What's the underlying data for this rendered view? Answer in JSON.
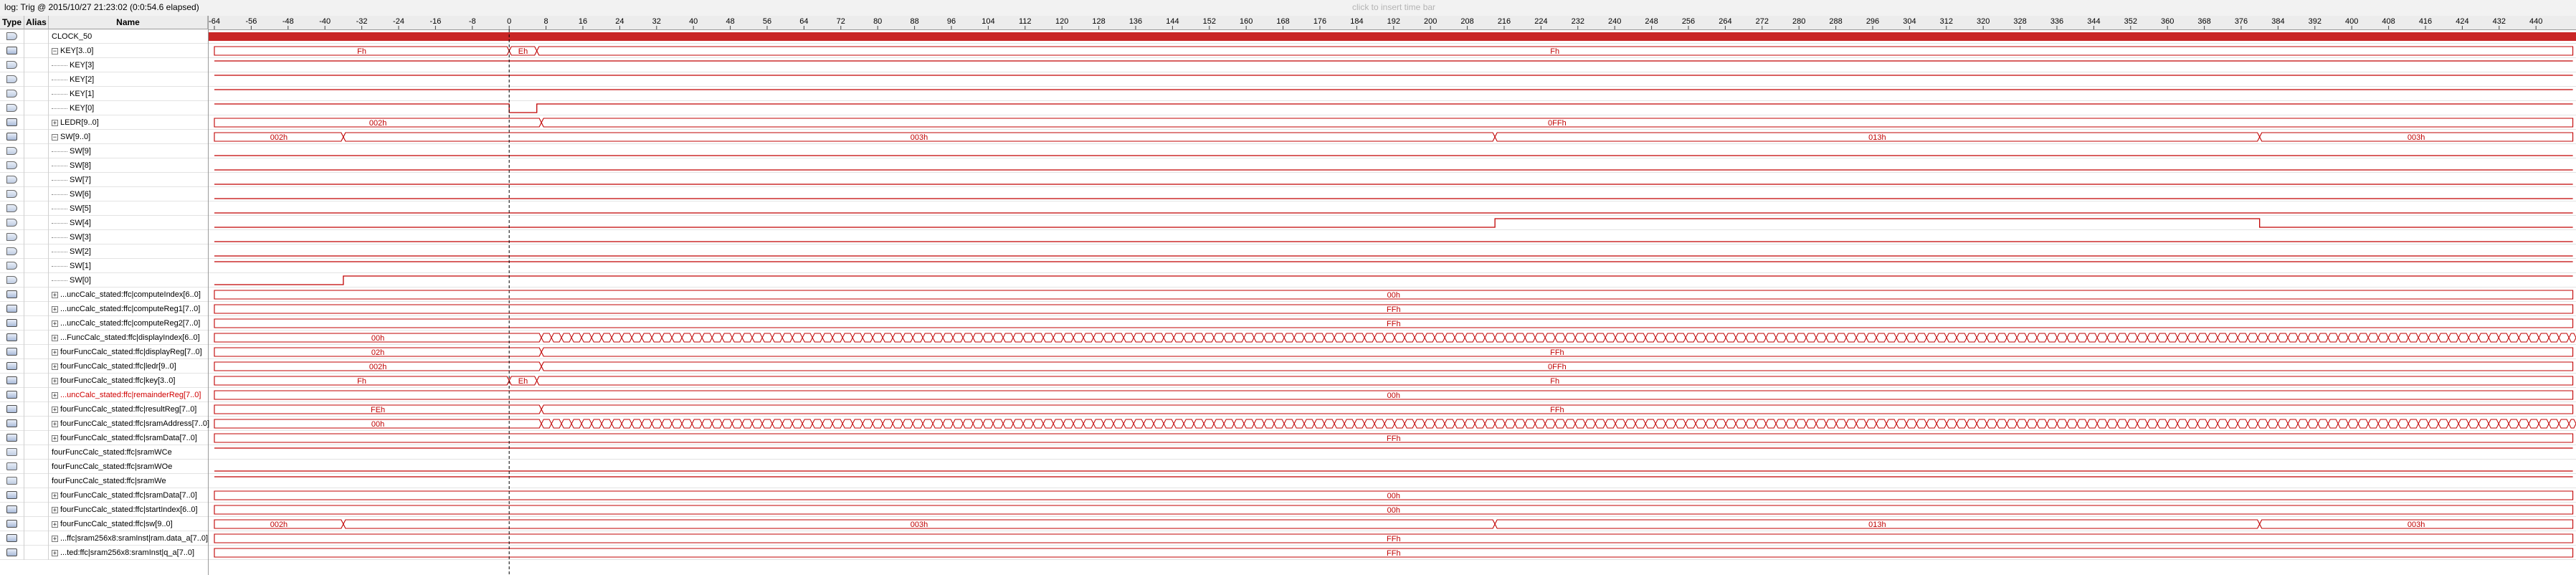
{
  "topbar": {
    "trigger": "log: Trig @ 2015/10/27 21:23:02 (0:0:54.6 elapsed)",
    "insert_hint": "click to insert time bar"
  },
  "columns": {
    "type": "Type",
    "alias": "Alias",
    "name": "Name"
  },
  "ruler": {
    "ticks": [
      "-64",
      "-56",
      "-48",
      "-40",
      "-32",
      "-24",
      "-16",
      "-8",
      "0",
      "8",
      "16",
      "24",
      "32",
      "40",
      "48",
      "56",
      "64",
      "72",
      "80",
      "88",
      "96",
      "104",
      "112",
      "120",
      "128",
      "136",
      "144",
      "152",
      "160",
      "168",
      "176",
      "184",
      "192",
      "200",
      "208",
      "216",
      "224",
      "232",
      "240",
      "248",
      "256",
      "264",
      "272",
      "280",
      "288",
      "296",
      "304",
      "312",
      "320",
      "328",
      "336",
      "344",
      "352",
      "360",
      "368",
      "376",
      "384",
      "392",
      "400",
      "408",
      "416",
      "424",
      "432",
      "440"
    ]
  },
  "colors": {
    "wave": "#c00000",
    "cursor": "#000000",
    "grid": "#e3e3e3"
  },
  "signals": [
    {
      "name": "CLOCK_50",
      "kind": "clock",
      "indent": 0,
      "icon": "port-icon"
    },
    {
      "name": "KEY[3..0]",
      "kind": "bus",
      "indent": 0,
      "expander": "−",
      "icon": "bus-icon",
      "segments": [
        {
          "from": -64,
          "to": 0,
          "label": "Fh"
        },
        {
          "from": 0,
          "to": 6,
          "label": "Eh"
        },
        {
          "from": 6,
          "to": 448,
          "label": "Fh"
        }
      ]
    },
    {
      "name": "KEY[3]",
      "kind": "bit",
      "indent": 1,
      "icon": "port-icon",
      "levels": [
        {
          "from": -64,
          "to": 448,
          "v": 1
        }
      ]
    },
    {
      "name": "KEY[2]",
      "kind": "bit",
      "indent": 1,
      "icon": "port-icon",
      "levels": [
        {
          "from": -64,
          "to": 448,
          "v": 1
        }
      ]
    },
    {
      "name": "KEY[1]",
      "kind": "bit",
      "indent": 1,
      "icon": "port-icon",
      "levels": [
        {
          "from": -64,
          "to": 448,
          "v": 1
        }
      ]
    },
    {
      "name": "KEY[0]",
      "kind": "bit",
      "indent": 1,
      "icon": "port-icon",
      "levels": [
        {
          "from": -64,
          "to": 0,
          "v": 1
        },
        {
          "from": 0,
          "to": 6,
          "v": 0
        },
        {
          "from": 6,
          "to": 448,
          "v": 1
        }
      ]
    },
    {
      "name": "LEDR[9..0]",
      "kind": "bus",
      "indent": 0,
      "expander": "+",
      "icon": "bus-icon",
      "segments": [
        {
          "from": -64,
          "to": 7,
          "label": "002h"
        },
        {
          "from": 7,
          "to": 448,
          "label": "0FFh"
        }
      ]
    },
    {
      "name": "SW[9..0]",
      "kind": "bus",
      "indent": 0,
      "expander": "−",
      "icon": "bus-icon",
      "segments": [
        {
          "from": -64,
          "to": -36,
          "label": "002h"
        },
        {
          "from": -36,
          "to": 214,
          "label": "003h"
        },
        {
          "from": 214,
          "to": 380,
          "label": "013h"
        },
        {
          "from": 380,
          "to": 448,
          "label": "003h"
        }
      ]
    },
    {
      "name": "SW[9]",
      "kind": "bit",
      "indent": 1,
      "icon": "port-icon",
      "levels": [
        {
          "from": -64,
          "to": 448,
          "v": 0
        }
      ]
    },
    {
      "name": "SW[8]",
      "kind": "bit",
      "indent": 1,
      "icon": "port-icon",
      "levels": [
        {
          "from": -64,
          "to": 448,
          "v": 0
        }
      ]
    },
    {
      "name": "SW[7]",
      "kind": "bit",
      "indent": 1,
      "icon": "port-icon",
      "levels": [
        {
          "from": -64,
          "to": 448,
          "v": 0
        }
      ]
    },
    {
      "name": "SW[6]",
      "kind": "bit",
      "indent": 1,
      "icon": "port-icon",
      "levels": [
        {
          "from": -64,
          "to": 448,
          "v": 0
        }
      ]
    },
    {
      "name": "SW[5]",
      "kind": "bit",
      "indent": 1,
      "icon": "port-icon",
      "levels": [
        {
          "from": -64,
          "to": 448,
          "v": 0
        }
      ]
    },
    {
      "name": "SW[4]",
      "kind": "bit",
      "indent": 1,
      "icon": "port-icon",
      "levels": [
        {
          "from": -64,
          "to": 214,
          "v": 0
        },
        {
          "from": 214,
          "to": 380,
          "v": 1
        },
        {
          "from": 380,
          "to": 448,
          "v": 0
        }
      ]
    },
    {
      "name": "SW[3]",
      "kind": "bit",
      "indent": 1,
      "icon": "port-icon",
      "levels": [
        {
          "from": -64,
          "to": 448,
          "v": 0
        }
      ]
    },
    {
      "name": "SW[2]",
      "kind": "bit",
      "indent": 1,
      "icon": "port-icon",
      "levels": [
        {
          "from": -64,
          "to": 448,
          "v": 0
        }
      ]
    },
    {
      "name": "SW[1]",
      "kind": "bit",
      "indent": 1,
      "icon": "port-icon",
      "levels": [
        {
          "from": -64,
          "to": -36,
          "v": 1
        },
        {
          "from": -36,
          "to": 448,
          "v": 1
        }
      ]
    },
    {
      "name": "SW[0]",
      "kind": "bit",
      "indent": 1,
      "icon": "port-icon",
      "levels": [
        {
          "from": -64,
          "to": -36,
          "v": 0
        },
        {
          "from": -36,
          "to": 448,
          "v": 1
        }
      ]
    },
    {
      "name": "...uncCalc_stated:ffc|computeIndex[6..0]",
      "kind": "bus",
      "indent": 0,
      "expander": "+",
      "icon": "reg-icon",
      "segments": [
        {
          "from": -64,
          "to": 448,
          "label": "00h"
        }
      ]
    },
    {
      "name": "...uncCalc_stated:ffc|computeReg1[7..0]",
      "kind": "bus",
      "indent": 0,
      "expander": "+",
      "icon": "reg-icon",
      "segments": [
        {
          "from": -64,
          "to": 448,
          "label": "FFh"
        }
      ]
    },
    {
      "name": "...uncCalc_stated:ffc|computeReg2[7..0]",
      "kind": "bus",
      "indent": 0,
      "expander": "+",
      "icon": "reg-icon",
      "segments": [
        {
          "from": -64,
          "to": 448,
          "label": "FFh"
        }
      ]
    },
    {
      "name": "...FuncCalc_stated:ffc|displayIndex[6..0]",
      "kind": "bus",
      "indent": 0,
      "expander": "+",
      "icon": "reg-icon",
      "segments": [
        {
          "from": -64,
          "to": 7,
          "label": "00h"
        }
      ],
      "toggle_from": 7
    },
    {
      "name": "fourFuncCalc_stated:ffc|displayReg[7..0]",
      "kind": "bus",
      "indent": 0,
      "expander": "+",
      "icon": "reg-icon",
      "segments": [
        {
          "from": -64,
          "to": 7,
          "label": "02h"
        },
        {
          "from": 7,
          "to": 448,
          "label": "FFh"
        }
      ]
    },
    {
      "name": "fourFuncCalc_stated:ffc|ledr[9..0]",
      "kind": "bus",
      "indent": 0,
      "expander": "+",
      "icon": "reg-icon",
      "segments": [
        {
          "from": -64,
          "to": 7,
          "label": "002h"
        },
        {
          "from": 7,
          "to": 448,
          "label": "0FFh"
        }
      ]
    },
    {
      "name": "fourFuncCalc_stated:ffc|key[3..0]",
      "kind": "bus",
      "indent": 0,
      "expander": "+",
      "icon": "reg-icon",
      "segments": [
        {
          "from": -64,
          "to": 0,
          "label": "Fh"
        },
        {
          "from": 0,
          "to": 6,
          "label": "Eh"
        },
        {
          "from": 6,
          "to": 448,
          "label": "Fh"
        }
      ]
    },
    {
      "name": "...uncCalc_stated:ffc|remainderReg[7..0]",
      "kind": "bus",
      "indent": 0,
      "expander": "+",
      "icon": "reg-icon",
      "red": true,
      "segments": [
        {
          "from": -64,
          "to": 448,
          "label": "00h"
        }
      ]
    },
    {
      "name": "fourFuncCalc_stated:ffc|resultReg[7..0]",
      "kind": "bus",
      "indent": 0,
      "expander": "+",
      "icon": "reg-icon",
      "segments": [
        {
          "from": -64,
          "to": 7,
          "label": "FEh"
        },
        {
          "from": 7,
          "to": 448,
          "label": "FFh"
        }
      ]
    },
    {
      "name": "fourFuncCalc_stated:ffc|sramAddress[7..0]",
      "kind": "bus",
      "indent": 0,
      "expander": "+",
      "icon": "reg-icon",
      "segments": [
        {
          "from": -64,
          "to": 7,
          "label": "00h"
        }
      ],
      "toggle_from": 7
    },
    {
      "name": "fourFuncCalc_stated:ffc|sramData[7..0]",
      "kind": "bus",
      "indent": 0,
      "expander": "+",
      "icon": "reg-icon",
      "segments": [
        {
          "from": -64,
          "to": 448,
          "label": "FFh"
        }
      ]
    },
    {
      "name": "fourFuncCalc_stated:ffc|sramWCe",
      "kind": "bit",
      "indent": 0,
      "icon": "reg-icon",
      "levels": [
        {
          "from": -64,
          "to": 448,
          "v": 1
        }
      ]
    },
    {
      "name": "fourFuncCalc_stated:ffc|sramWOe",
      "kind": "bit",
      "indent": 0,
      "icon": "reg-icon",
      "levels": [
        {
          "from": -64,
          "to": 448,
          "v": 0
        }
      ]
    },
    {
      "name": "fourFuncCalc_stated:ffc|sramWe",
      "kind": "bit",
      "indent": 0,
      "icon": "reg-icon",
      "levels": [
        {
          "from": -64,
          "to": 448,
          "v": 1
        }
      ]
    },
    {
      "name": "fourFuncCalc_stated:ffc|sramData[7..0]",
      "kind": "bus",
      "indent": 0,
      "expander": "+",
      "icon": "reg-icon",
      "segments": [
        {
          "from": -64,
          "to": 448,
          "label": "00h"
        }
      ]
    },
    {
      "name": "fourFuncCalc_stated:ffc|startIndex[6..0]",
      "kind": "bus",
      "indent": 0,
      "expander": "+",
      "icon": "reg-icon",
      "segments": [
        {
          "from": -64,
          "to": 448,
          "label": "00h"
        }
      ]
    },
    {
      "name": "fourFuncCalc_stated:ffc|sw[9..0]",
      "kind": "bus",
      "indent": 0,
      "expander": "+",
      "icon": "reg-icon",
      "segments": [
        {
          "from": -64,
          "to": -36,
          "label": "002h"
        },
        {
          "from": -36,
          "to": 214,
          "label": "003h"
        },
        {
          "from": 214,
          "to": 380,
          "label": "013h"
        },
        {
          "from": 380,
          "to": 448,
          "label": "003h"
        }
      ]
    },
    {
      "name": "...ffc|sram256x8:sramInst|ram.data_a[7..0]",
      "kind": "bus",
      "indent": 0,
      "expander": "+",
      "icon": "reg-icon",
      "segments": [
        {
          "from": -64,
          "to": 448,
          "label": "FFh"
        }
      ]
    },
    {
      "name": "...ted:ffc|sram256x8:sramInst|q_a[7..0]",
      "kind": "bus",
      "indent": 0,
      "expander": "+",
      "icon": "reg-icon",
      "segments": [
        {
          "from": -64,
          "to": 448,
          "label": "FFh"
        }
      ]
    }
  ]
}
